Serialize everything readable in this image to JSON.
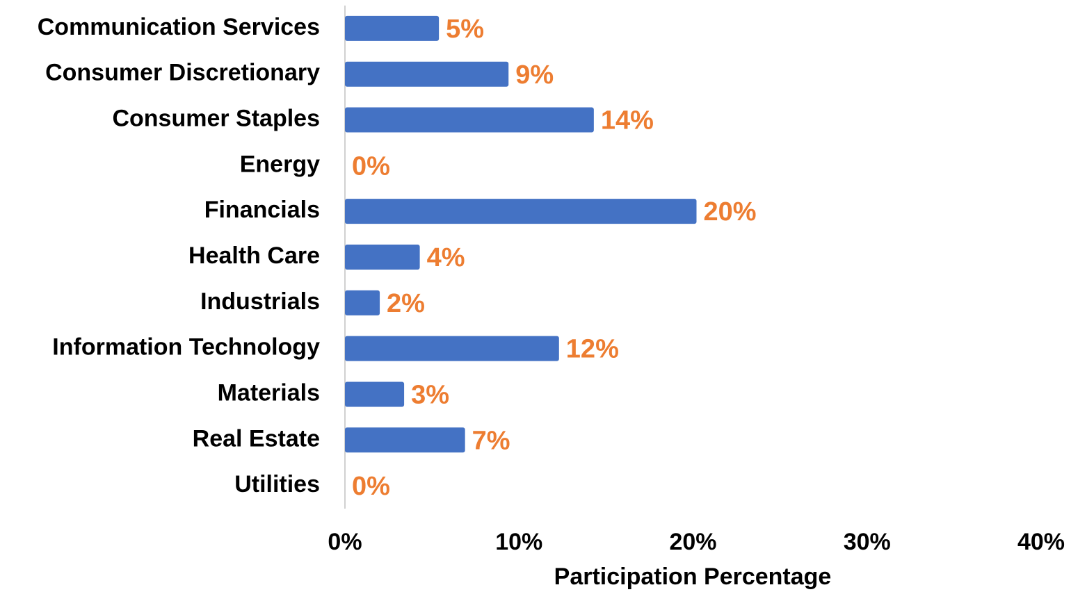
{
  "chart_data": {
    "type": "hbar",
    "x_label": "Participation Percentage",
    "categories": [
      "Communication Services",
      "Consumer Discretionary",
      "Consumer Staples",
      "Energy",
      "Financials",
      "Health Care",
      "Industrials",
      "Information Technology",
      "Materials",
      "Real Estate",
      "Utilities"
    ],
    "values": [
      5.4,
      9.4,
      14.3,
      0,
      20.2,
      4.3,
      2.0,
      12.3,
      3.4,
      6.9,
      0
    ],
    "value_labels": [
      "5%",
      "9%",
      "14%",
      "0%",
      "20%",
      "4%",
      "2%",
      "12%",
      "3%",
      "7%",
      "0%"
    ],
    "color": "#4472c4",
    "value_label_color": "#ed7d31",
    "xlim": [
      0,
      40
    ],
    "xticks": [
      {
        "value": 0,
        "label": "0%"
      },
      {
        "value": 10,
        "label": "10%"
      },
      {
        "value": 20,
        "label": "20%"
      },
      {
        "value": 30,
        "label": "30%"
      },
      {
        "value": 40,
        "label": "40%"
      }
    ],
    "grid": false
  }
}
